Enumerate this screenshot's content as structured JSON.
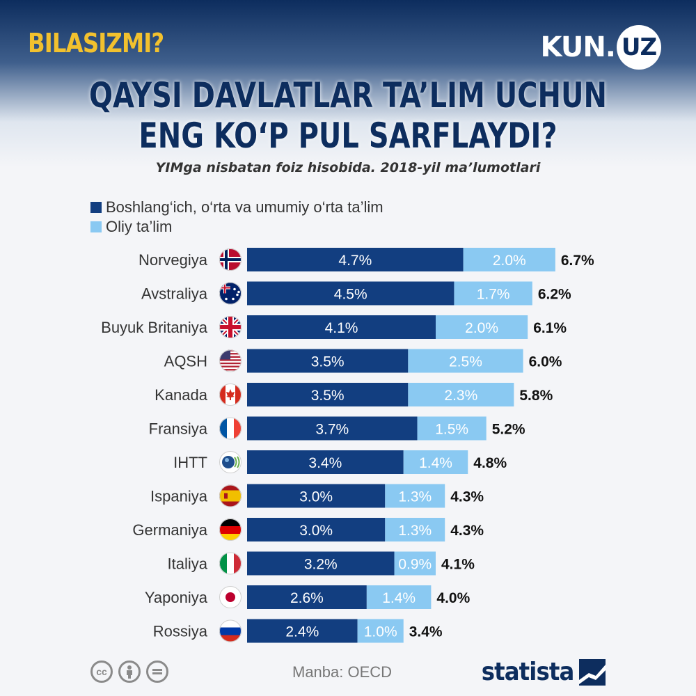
{
  "header": {
    "tag": "BILASIZMI?",
    "brand_main": "KUN.",
    "brand_circle": "UZ",
    "title_line1": "QAYSI DAVLATLAR TA’LIM UCHUN",
    "title_line2": "ENG KO‘P PUL SARFLAYDI?",
    "subtitle": "YIMga nisbatan foiz hisobida. 2018-yil ma’lumotlari"
  },
  "colors": {
    "dark_blue": "#123e80",
    "light_blue": "#8ac9f2",
    "title_blue": "#0d2d5e",
    "tag_yellow": "#f2c12e"
  },
  "chart_data": {
    "type": "bar",
    "orientation": "horizontal",
    "stacked": true,
    "categories": [
      "Norvegiya",
      "Avstraliya",
      "Buyuk Britaniya",
      "AQSH",
      "Kanada",
      "Fransiya",
      "IHTT",
      "Ispaniya",
      "Germaniya",
      "Italiya",
      "Yaponiya",
      "Rossiya"
    ],
    "flags": [
      "norway-flag-icon",
      "australia-flag-icon",
      "uk-flag-icon",
      "usa-flag-icon",
      "canada-flag-icon",
      "france-flag-icon",
      "oecd-logo-icon",
      "spain-flag-icon",
      "germany-flag-icon",
      "italy-flag-icon",
      "japan-flag-icon",
      "russia-flag-icon"
    ],
    "series": [
      {
        "name": "Boshlang‘ich, o‘rta va umumiy o‘rta ta’lim",
        "values": [
          4.7,
          4.5,
          4.1,
          3.5,
          3.5,
          3.7,
          3.4,
          3.0,
          3.0,
          3.2,
          2.6,
          2.4
        ],
        "labels": [
          "4.7%",
          "4.5%",
          "4.1%",
          "3.5%",
          "3.5%",
          "3.7%",
          "3.4%",
          "3.0%",
          "3.0%",
          "3.2%",
          "2.6%",
          "2.4%"
        ]
      },
      {
        "name": "Oliy ta’lim",
        "values": [
          2.0,
          1.7,
          2.0,
          2.5,
          2.3,
          1.5,
          1.4,
          1.3,
          1.3,
          0.9,
          1.4,
          1.0
        ],
        "labels": [
          "2.0%",
          "1.7%",
          "2.0%",
          "2.5%",
          "2.3%",
          "1.5%",
          "1.4%",
          "1.3%",
          "1.3%",
          "0.9%",
          "1.4%",
          "1.0%"
        ]
      }
    ],
    "totals": [
      6.7,
      6.2,
      6.1,
      6.0,
      5.8,
      5.2,
      4.8,
      4.3,
      4.3,
      4.1,
      4.0,
      3.4
    ],
    "total_labels": [
      "6.7%",
      "6.2%",
      "6.1%",
      "6.0%",
      "5.8%",
      "5.2%",
      "4.8%",
      "4.3%",
      "4.3%",
      "4.1%",
      "4.0%",
      "3.4%"
    ],
    "legend_position": "top-left",
    "grid": false
  },
  "footer": {
    "license_icons": [
      "cc-icon",
      "by-icon",
      "nd-icon"
    ],
    "cc_text": "cc",
    "source": "Manba: OECD",
    "logo": "statista"
  }
}
